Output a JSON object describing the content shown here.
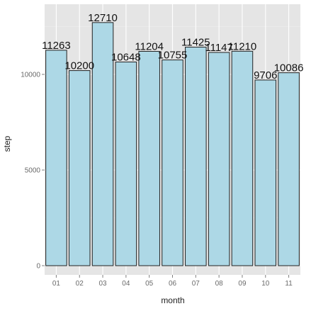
{
  "chart_data": {
    "type": "bar",
    "categories": [
      "01",
      "02",
      "03",
      "04",
      "05",
      "06",
      "07",
      "08",
      "09",
      "10",
      "11"
    ],
    "values": [
      11263,
      10200,
      12710,
      10648,
      11204,
      10755,
      11425,
      11147,
      11210,
      9706,
      10086
    ],
    "data_labels": [
      "11263",
      "10200",
      "12710",
      "10648",
      "11204",
      "10755",
      "11425",
      "11147",
      "11210",
      "9706",
      "10086"
    ],
    "xlabel": "month",
    "ylabel": "step",
    "ylim": [
      0,
      13400
    ],
    "yticks": [
      0,
      5000,
      10000
    ],
    "ytick_labels": [
      "0",
      "5000",
      "10000"
    ],
    "grid": true,
    "colors": {
      "bar_fill": "#add8e6",
      "bar_stroke": "#222222",
      "panel": "#e5e5e5",
      "grid": "#ffffff"
    }
  }
}
